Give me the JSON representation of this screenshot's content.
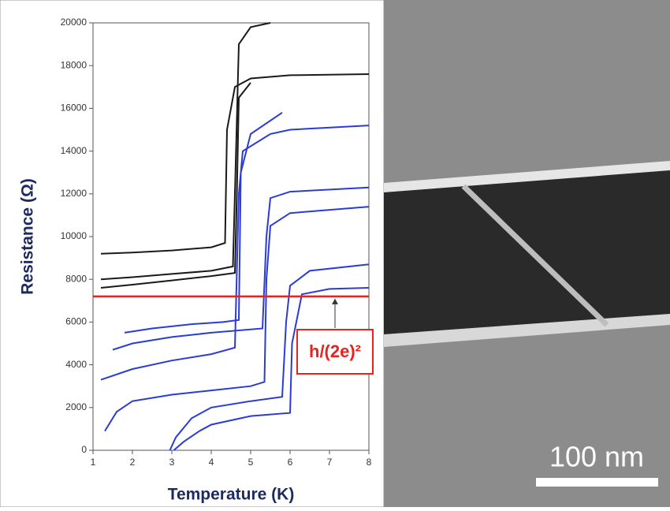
{
  "chart_data": {
    "type": "line",
    "x_label": "Temperature (K)",
    "y_label": "Resistance (Ω)",
    "xlim": [
      1,
      8
    ],
    "xticks": [
      1,
      2,
      3,
      4,
      5,
      6,
      7,
      8
    ],
    "ylim": [
      0,
      20000
    ],
    "yticks": [
      0,
      2000,
      4000,
      6000,
      8000,
      10000,
      12000,
      14000,
      16000,
      18000,
      20000
    ],
    "reference_line": {
      "value": 7200,
      "label": "h/(2e)²",
      "color": "#e8231f"
    },
    "series": [
      {
        "color": "#1a1a1a",
        "x": [
          1.2,
          2,
          3,
          4,
          4.35,
          4.4,
          4.6,
          5,
          6,
          8
        ],
        "values": [
          9200,
          9250,
          9350,
          9500,
          9700,
          15000,
          17000,
          17400,
          17550,
          17600
        ]
      },
      {
        "color": "#1a1a1a",
        "x": [
          1.2,
          2,
          3,
          4,
          4.55,
          4.6,
          4.7,
          5,
          5.5
        ],
        "values": [
          8000,
          8100,
          8250,
          8400,
          8600,
          12000,
          19000,
          19800,
          20000
        ]
      },
      {
        "color": "#1a1a1a",
        "x": [
          1.2,
          2,
          3,
          4,
          4.6,
          4.65,
          4.7,
          5
        ],
        "values": [
          7600,
          7750,
          7950,
          8150,
          8300,
          12000,
          16500,
          17200
        ]
      },
      {
        "color": "#2b3bd6",
        "x": [
          1.8,
          2.5,
          3.5,
          4.3,
          4.7,
          4.75,
          5,
          5.8
        ],
        "values": [
          5500,
          5700,
          5900,
          6000,
          6100,
          13000,
          14800,
          15800
        ]
      },
      {
        "color": "#2b3bd6",
        "x": [
          1.5,
          2,
          3,
          4,
          5.3,
          5.4,
          5.5,
          6,
          8
        ],
        "values": [
          4700,
          5000,
          5300,
          5500,
          5700,
          10000,
          11800,
          12100,
          12300
        ]
      },
      {
        "color": "#2b3bd6",
        "x": [
          1.2,
          2,
          3,
          4,
          4.6,
          4.7,
          4.8,
          5.5,
          6,
          8
        ],
        "values": [
          3300,
          3800,
          4200,
          4500,
          4800,
          12000,
          14000,
          14800,
          15000,
          15200
        ]
      },
      {
        "color": "#2b3bd6",
        "x": [
          1.3,
          1.6,
          2,
          3,
          4,
          5,
          5.35,
          5.4,
          5.5,
          6,
          8
        ],
        "values": [
          900,
          1800,
          2300,
          2600,
          2800,
          3000,
          3200,
          8000,
          10500,
          11100,
          11400
        ]
      },
      {
        "color": "#2b3bd6",
        "x": [
          2.95,
          3.1,
          3.5,
          4,
          5,
          5.8,
          5.9,
          6,
          6.5,
          8
        ],
        "values": [
          0,
          600,
          1500,
          2000,
          2300,
          2500,
          6000,
          7700,
          8400,
          8700
        ]
      },
      {
        "color": "#2b3bd6",
        "x": [
          3.05,
          3.3,
          3.7,
          4,
          5,
          6,
          6.05,
          6.3,
          7,
          8
        ],
        "values": [
          0,
          400,
          900,
          1200,
          1600,
          1750,
          5000,
          7300,
          7550,
          7600
        ]
      }
    ]
  },
  "scale_bar": {
    "label": "100 nm"
  }
}
